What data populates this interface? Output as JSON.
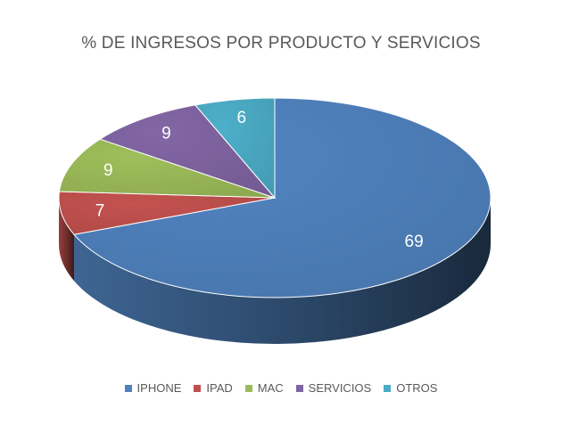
{
  "chart_data": {
    "type": "pie",
    "style": "3d",
    "title": "% DE INGRESOS POR PRODUCTO Y SERVICIOS",
    "categories": [
      "IPHONE",
      "IPAD",
      "MAC",
      "SERVICIOS",
      "OTROS"
    ],
    "values": [
      69,
      7,
      9,
      9,
      6
    ],
    "data_labels": [
      "69",
      "7",
      "9",
      "9",
      "6"
    ],
    "colors": [
      "#4f81bd",
      "#c0504d",
      "#9bbb59",
      "#8064a2",
      "#4bacc6"
    ],
    "legend_position": "bottom"
  }
}
